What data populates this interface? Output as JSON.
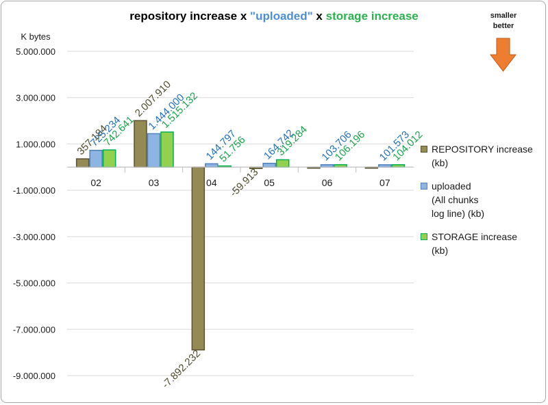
{
  "chart_data": {
    "type": "bar",
    "title_parts": [
      {
        "text": "repository increase x ",
        "color": "#000000"
      },
      {
        "text": "\"uploaded\"",
        "color": "#4d8fd6"
      },
      {
        "text": " x ",
        "color": "#000000"
      },
      {
        "text": "storage increase",
        "color": "#2bb24c"
      }
    ],
    "ylabel": "K bytes",
    "categories": [
      "02",
      "03",
      "04",
      "05",
      "06",
      "07"
    ],
    "ylim": [
      -9000000,
      5000000
    ],
    "yticks": [
      5000000,
      3000000,
      1000000,
      -1000000,
      -3000000,
      -5000000,
      -7000000,
      -9000000
    ],
    "ytick_labels": [
      "5.000.000",
      "3.000.000",
      "1.000.000",
      "-1.000.000",
      "-3.000.000",
      "-5.000.000",
      "-7.000.000",
      "-9.000.000"
    ],
    "series": [
      {
        "name": "REPOSITORY increase (kb)",
        "legend_lines": [
          "REPOSITORY increase",
          "(kb)"
        ],
        "color": "#948a54",
        "edge": "#5a5230",
        "label_color": "#4f4a2a",
        "values": [
          357184,
          2007910,
          -7892232,
          -59913,
          0,
          0
        ],
        "labels": [
          "357.184",
          "2.007.910",
          "-7.892.232",
          "-59.913",
          "",
          ""
        ]
      },
      {
        "name": "uploaded (All chunks log line) (kb)",
        "legend_lines": [
          "uploaded",
          "(All chunks",
          " log line) (kb)"
        ],
        "color": "#8db4e2",
        "edge": "#4f81bd",
        "label_color": "#1f6fc0",
        "values": [
          725234,
          1444000,
          144797,
          164742,
          103706,
          101573
        ],
        "labels": [
          "725.234",
          "1.444.000",
          "144.797",
          "164.742",
          "103.706",
          "101.573"
        ]
      },
      {
        "name": "STORAGE increase (kb)",
        "legend_lines": [
          "STORAGE increase",
          "(kb)"
        ],
        "color": "#92d050",
        "edge": "#00b050",
        "label_color": "#17a34a",
        "values": [
          742641,
          1515132,
          51756,
          319284,
          106196,
          104012
        ],
        "labels": [
          "742.641",
          "1.515.132",
          "51.756",
          "319.284",
          "106.196",
          "104.012"
        ]
      }
    ],
    "annotation": {
      "lines": [
        "smaller",
        "better"
      ],
      "arrow_color": "#ed7d31",
      "direction": "down"
    }
  }
}
